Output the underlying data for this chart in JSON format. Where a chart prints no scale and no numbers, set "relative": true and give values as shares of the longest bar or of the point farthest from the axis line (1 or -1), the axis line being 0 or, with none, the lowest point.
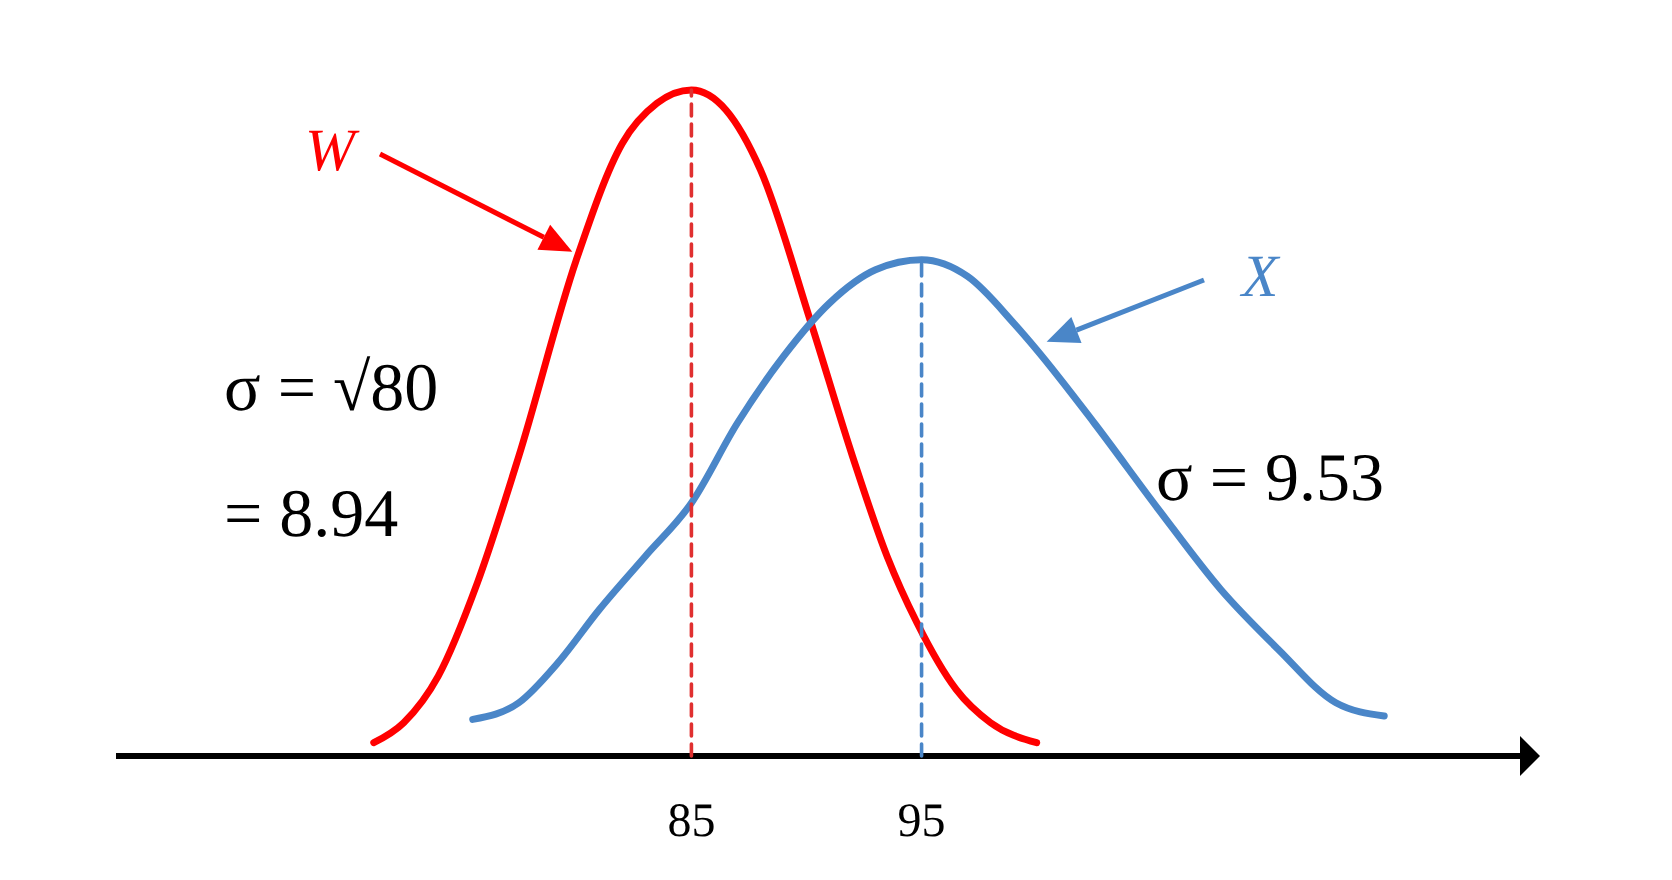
{
  "chart_data": {
    "type": "line",
    "relative": true,
    "xlim": [
      60,
      121
    ],
    "xticks": [
      85,
      95
    ],
    "grid": false,
    "marker": "none",
    "series": [
      {
        "name": "W",
        "color": "#ff0000",
        "x": [
          71.2,
          72.5,
          74,
          75.7,
          77.5,
          80,
          82,
          83.5,
          85,
          86.5,
          88,
          90.2,
          92,
          93.5,
          94.8,
          96.5,
          98,
          100
        ],
        "values": [
          0.02,
          0.05,
          0.12,
          0.26,
          0.45,
          0.745,
          0.92,
          0.98,
          1,
          0.97,
          0.88,
          0.65,
          0.45,
          0.3,
          0.2,
          0.1,
          0.05,
          0.02
        ]
      },
      {
        "name": "X",
        "color": "#4a86c8",
        "x": [
          75.5,
          77.5,
          79.2,
          81,
          83,
          85,
          87,
          89,
          91,
          93,
          95,
          97,
          99,
          100,
          102.5,
          105.3,
          108,
          110.5,
          113,
          115.1
        ],
        "values": [
          0.055,
          0.08,
          0.14,
          0.22,
          0.3,
          0.38,
          0.5,
          0.6,
          0.68,
          0.73,
          0.745,
          0.72,
          0.65,
          0.61,
          0.5,
          0.37,
          0.25,
          0.16,
          0.08,
          0.06
        ]
      },
      {
        "type": "line",
        "line_style": "dashed",
        "color": "#e03030",
        "x": [
          85,
          85
        ],
        "values": [
          0,
          1
        ]
      },
      {
        "type": "line",
        "line_style": "dashed",
        "color": "#4a86c8",
        "x": [
          95,
          95
        ],
        "values": [
          0,
          0.745
        ]
      }
    ],
    "annotations": [
      "σ = √80",
      "= 8.94",
      "σ = 9.53"
    ]
  }
}
